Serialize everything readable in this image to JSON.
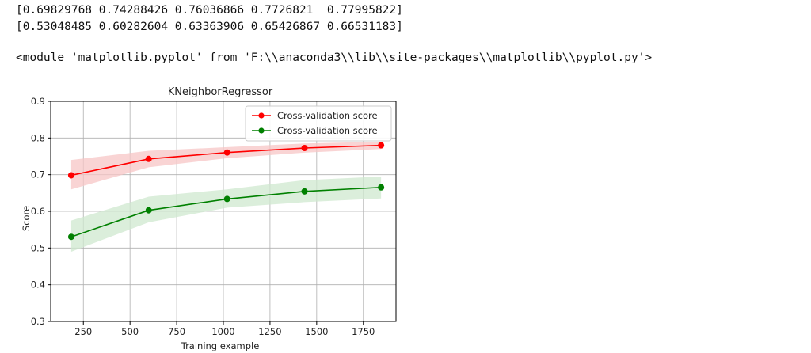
{
  "output": {
    "array_line_1": "[0.69829768 0.74288426 0.76036866 0.7726821  0.77995822]",
    "array_line_2": "[0.53048485 0.60282604 0.63363906 0.65426867 0.66531183]",
    "module_line": "<module 'matplotlib.pyplot' from 'F:\\\\anaconda3\\\\lib\\\\site-packages\\\\matplotlib\\\\pyplot.py'>"
  },
  "colors": {
    "train": "#ff0000",
    "train_band": "#f7c6c6",
    "test": "#008000",
    "test_band": "#cfe8cf",
    "grid": "#b0b0b0",
    "axis": "#000000"
  },
  "chart_data": {
    "type": "line",
    "title": "KNeighborRegressor",
    "xlabel": "Training example",
    "ylabel": "Score",
    "xlim": [
      75,
      1925
    ],
    "ylim": [
      0.3,
      0.9
    ],
    "x_ticks": [
      250,
      500,
      750,
      1000,
      1250,
      1500,
      1750
    ],
    "y_ticks": [
      "0.3",
      "0.4",
      "0.5",
      "0.6",
      "0.7",
      "0.8",
      "0.9"
    ],
    "grid": true,
    "legend_position": "top-right",
    "x": [
      185,
      600,
      1020,
      1435,
      1845
    ],
    "series": [
      {
        "name": "Cross-validation score",
        "color": "red",
        "values": [
          0.69829768,
          0.74288426,
          0.76036866,
          0.7726821,
          0.77995822
        ],
        "band_lower": [
          0.66,
          0.72,
          0.745,
          0.76,
          0.77
        ],
        "band_upper": [
          0.74,
          0.765,
          0.775,
          0.785,
          0.79
        ]
      },
      {
        "name": "Cross-validation score",
        "color": "green",
        "values": [
          0.53048485,
          0.60282604,
          0.63363906,
          0.65426867,
          0.66531183
        ],
        "band_lower": [
          0.49,
          0.57,
          0.61,
          0.625,
          0.635
        ],
        "band_upper": [
          0.575,
          0.64,
          0.66,
          0.685,
          0.695
        ]
      }
    ]
  }
}
